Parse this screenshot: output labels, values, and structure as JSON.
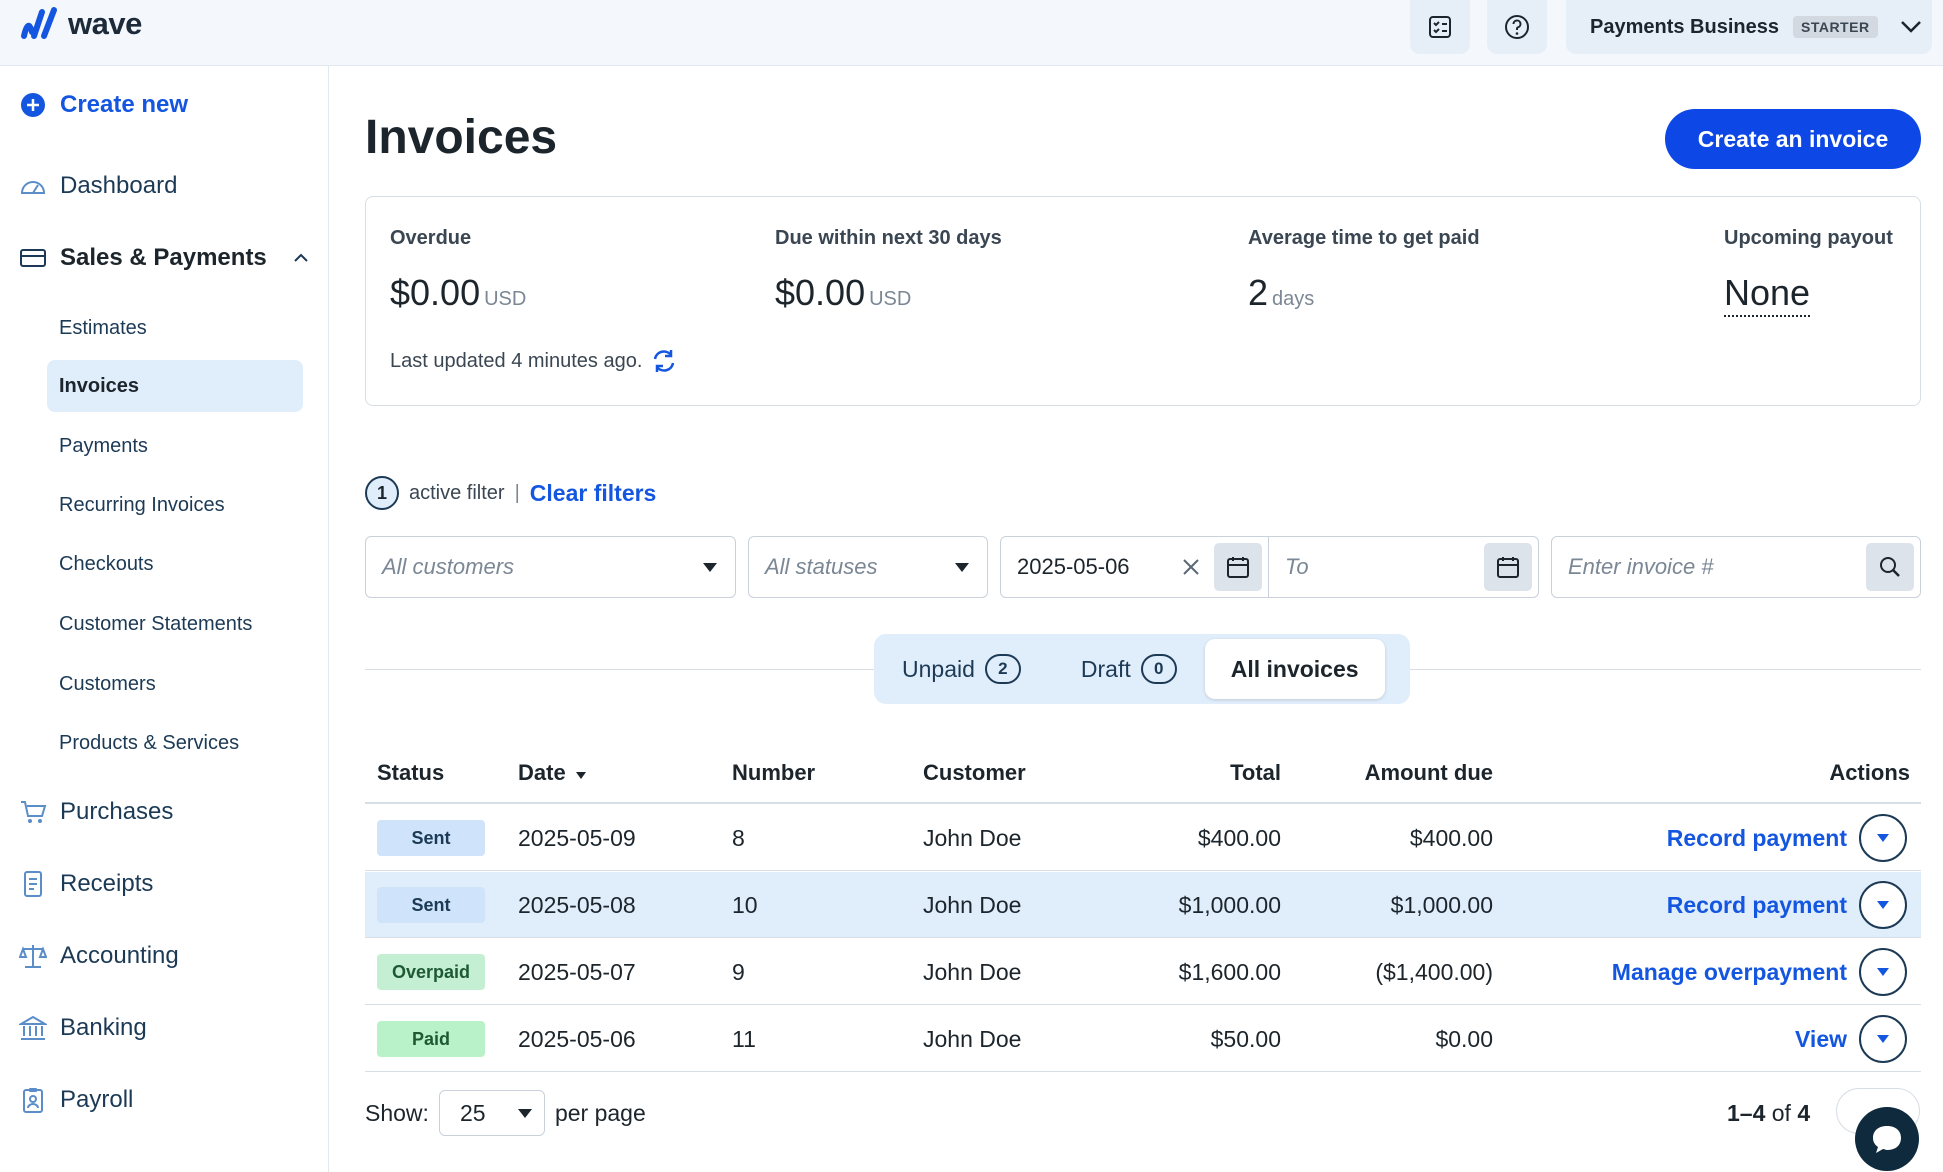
{
  "app": {
    "logo_text": "wave"
  },
  "topbar": {
    "icons": [
      "checklist-icon",
      "help-icon"
    ],
    "business_name": "Payments Business",
    "plan_badge": "STARTER"
  },
  "sidebar": {
    "create_new": "Create new",
    "dashboard": "Dashboard",
    "sales_payments": "Sales & Payments",
    "sub_items": [
      "Estimates",
      "Invoices",
      "Payments",
      "Recurring Invoices",
      "Checkouts",
      "Customer Statements",
      "Customers",
      "Products & Services"
    ],
    "purchases": "Purchases",
    "receipts": "Receipts",
    "accounting": "Accounting",
    "banking": "Banking",
    "payroll": "Payroll"
  },
  "page": {
    "title": "Invoices",
    "create_button": "Create an invoice"
  },
  "summary": {
    "overdue_label": "Overdue",
    "overdue_value": "$0.00",
    "overdue_unit": "USD",
    "due30_label": "Due within next 30 days",
    "due30_value": "$0.00",
    "due30_unit": "USD",
    "avg_label": "Average time to get paid",
    "avg_value": "2",
    "avg_unit": "days",
    "payout_label": "Upcoming payout",
    "payout_value": "None",
    "last_updated": "Last updated 4 minutes ago."
  },
  "filters": {
    "active_count": "1",
    "active_text": "active filter",
    "separator": "|",
    "clear": "Clear filters",
    "customers_placeholder": "All customers",
    "statuses_placeholder": "All statuses",
    "from_date": "2025-05-06",
    "to_placeholder": "To",
    "invoice_placeholder": "Enter invoice #"
  },
  "tabs": [
    {
      "label": "Unpaid",
      "count": "2"
    },
    {
      "label": "Draft",
      "count": "0"
    },
    {
      "label": "All invoices"
    }
  ],
  "table": {
    "headers": {
      "status": "Status",
      "date": "Date",
      "number": "Number",
      "customer": "Customer",
      "total": "Total",
      "amount_due": "Amount due",
      "actions": "Actions"
    },
    "rows": [
      {
        "status": "Sent",
        "date": "2025-05-09",
        "number": "8",
        "customer": "John Doe",
        "total": "$400.00",
        "amount_due": "$400.00",
        "action": "Record payment"
      },
      {
        "status": "Sent",
        "date": "2025-05-08",
        "number": "10",
        "customer": "John Doe",
        "total": "$1,000.00",
        "amount_due": "$1,000.00",
        "action": "Record payment"
      },
      {
        "status": "Overpaid",
        "date": "2025-05-07",
        "number": "9",
        "customer": "John Doe",
        "total": "$1,600.00",
        "amount_due": "($1,400.00)",
        "action": "Manage overpayment"
      },
      {
        "status": "Paid",
        "date": "2025-05-06",
        "number": "11",
        "customer": "John Doe",
        "total": "$50.00",
        "amount_due": "$0.00",
        "action": "View"
      }
    ]
  },
  "footer": {
    "show_label": "Show:",
    "per_page_value": "25",
    "per_page_label": "per page",
    "range": "1–4",
    "of_label": "of",
    "total": "4"
  },
  "colors": {
    "primary": "#0d47e6",
    "link": "#1456e0",
    "highlight": "#e0edfb"
  }
}
